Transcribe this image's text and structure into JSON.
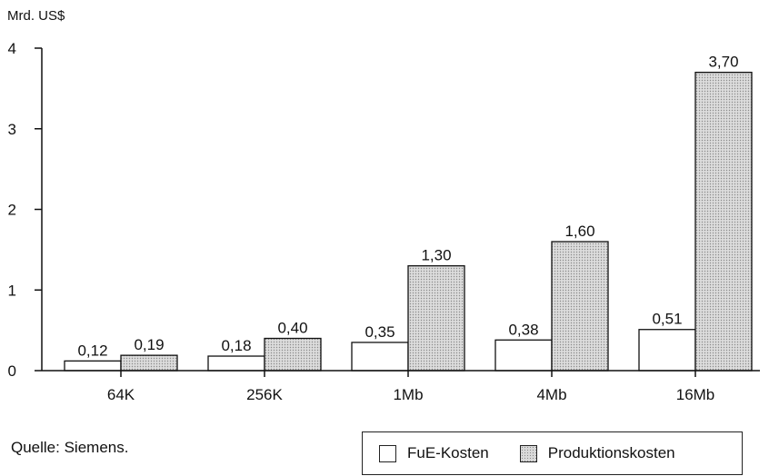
{
  "chart_data": {
    "type": "bar",
    "ylabel": "Mrd. US$",
    "ylim": [
      0,
      4
    ],
    "yticks": [
      0,
      1,
      2,
      3,
      4
    ],
    "ytick_labels": [
      "0",
      "1",
      "2",
      "3",
      "4"
    ],
    "categories": [
      "64K",
      "256K",
      "1Mb",
      "4Mb",
      "16Mb"
    ],
    "series": [
      {
        "name": "FuE-Kosten",
        "values": [
          0.12,
          0.18,
          0.35,
          0.38,
          0.51
        ],
        "labels": [
          "0,12",
          "0,18",
          "0,35",
          "0,38",
          "0,51"
        ],
        "fill": "#ffffff"
      },
      {
        "name": "Produktionskosten",
        "values": [
          0.19,
          0.4,
          1.3,
          1.6,
          3.7
        ],
        "labels": [
          "0,19",
          "0,40",
          "1,30",
          "1,60",
          "3,70"
        ],
        "fill": "#d9d9d9"
      }
    ],
    "grid": false,
    "legend": "bottom-right"
  },
  "source": "Quelle: Siemens."
}
